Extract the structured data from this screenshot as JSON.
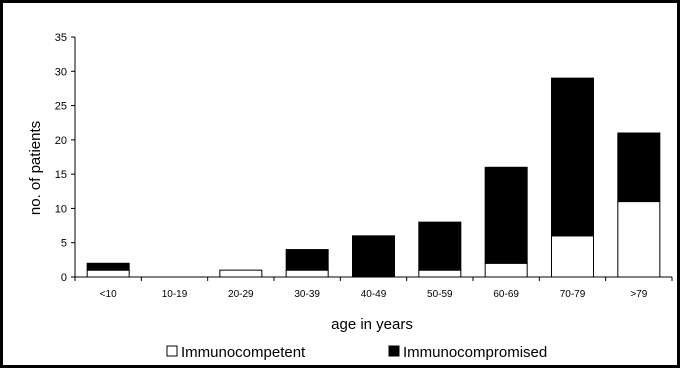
{
  "chart_data": {
    "type": "bar",
    "stacked": true,
    "categories": [
      "<10",
      "10-19",
      "20-29",
      "30-39",
      "40-49",
      "50-59",
      "60-69",
      "70-79",
      ">79"
    ],
    "series": [
      {
        "name": "Immunocompetent",
        "color": "#ffffff",
        "values": [
          1,
          0,
          1,
          1,
          0,
          1,
          2,
          6,
          11
        ]
      },
      {
        "name": "Immunocompromised",
        "color": "#000000",
        "values": [
          1,
          0,
          0,
          3,
          6,
          7,
          14,
          23,
          10
        ]
      }
    ],
    "title": "",
    "xlabel": "age in years",
    "ylabel": "no. of patients",
    "ylim": [
      0,
      35
    ],
    "yticks": [
      0,
      5,
      10,
      15,
      20,
      25,
      30,
      35
    ],
    "grid": false,
    "legend": "bottom"
  }
}
